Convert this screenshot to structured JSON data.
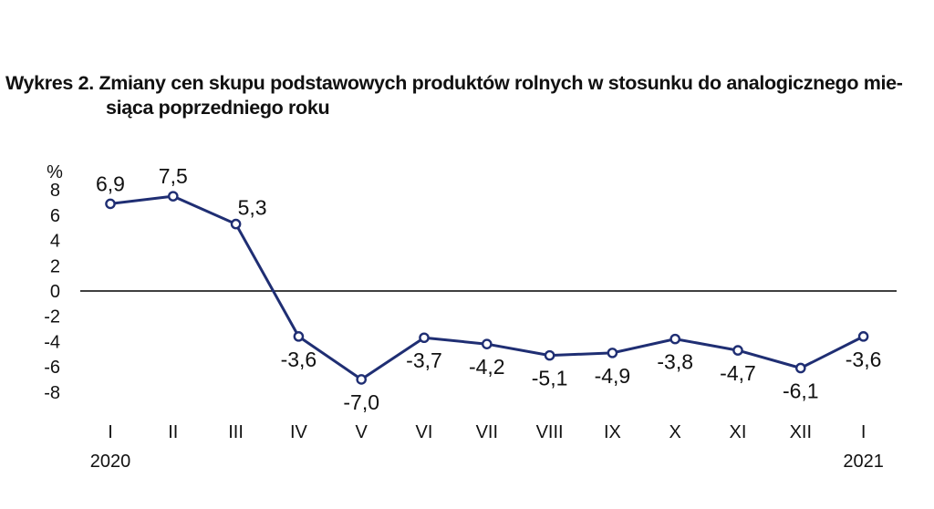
{
  "title_line1": "Wykres 2. Zmiany cen skupu podstawowych produktów rolnych w stosunku do analogicznego mie-",
  "title_line2": "siąca poprzedniego roku",
  "chart_data": {
    "type": "line",
    "title": "Wykres 2. Zmiany cen skupu podstawowych produktów rolnych w stosunku do analogicznego miesiąca poprzedniego roku",
    "ylabel": "%",
    "xlabel": "",
    "ylim": [
      -8,
      8
    ],
    "yticks": [
      8,
      6,
      4,
      2,
      0,
      -2,
      -4,
      -6,
      -8
    ],
    "yticklabels": [
      "8",
      "6",
      "4",
      "2",
      "0",
      "-2",
      "-4",
      "-6",
      "-8"
    ],
    "categories": [
      "I",
      "II",
      "III",
      "IV",
      "V",
      "VI",
      "VII",
      "VIII",
      "IX",
      "X",
      "XI",
      "XII",
      "I"
    ],
    "year_labels": [
      {
        "index": 0,
        "label": "2020"
      },
      {
        "index": 12,
        "label": "2021"
      }
    ],
    "series": [
      {
        "values": [
          6.9,
          7.5,
          5.3,
          -3.6,
          -7.0,
          -3.7,
          -4.2,
          -5.1,
          -4.9,
          -3.8,
          -4.7,
          -6.1,
          -3.6
        ],
        "labels": [
          "6,9",
          "7,5",
          "5,3",
          "-3,6",
          "-7,0",
          "-3,7",
          "-4,2",
          "-5,1",
          "-4,9",
          "-3,8",
          "-4,7",
          "-6,1",
          "-3,6"
        ],
        "label_pos": [
          "above",
          "above",
          "above-right",
          "below",
          "below",
          "below",
          "below",
          "below",
          "below",
          "below",
          "below",
          "below",
          "below"
        ],
        "color": "#1f2e73"
      }
    ],
    "zero_line_color": "#000000",
    "grid": false,
    "legend": "none"
  }
}
